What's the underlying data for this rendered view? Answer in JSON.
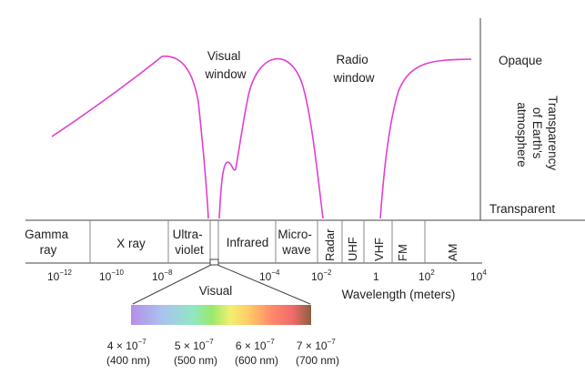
{
  "windows": {
    "visual": [
      "Visual",
      "window"
    ],
    "radio": [
      "Radio",
      "window"
    ]
  },
  "right_axis": {
    "top": "Opaque",
    "bottom": "Transparent",
    "label": [
      "Transparency",
      "of Earth's",
      "atmosphere"
    ]
  },
  "bands": {
    "gamma": [
      "Gamma",
      "ray"
    ],
    "xray": "X ray",
    "uv": [
      "Ultra-",
      "violet"
    ],
    "infrared": "Infrared",
    "microwave": [
      "Micro-",
      "wave"
    ],
    "radar": "Radar",
    "uhf": "UHF",
    "vhf": "VHF",
    "fm": "FM",
    "am": "AM"
  },
  "wavelength_axis": {
    "title": "Wavelength (meters)",
    "ticks": [
      {
        "base": "10",
        "exp": "−12"
      },
      {
        "base": "10",
        "exp": "−10"
      },
      {
        "base": "10",
        "exp": "−8"
      },
      {
        "base": "10",
        "exp": "−4"
      },
      {
        "base": "10",
        "exp": "−2"
      },
      {
        "base": "1",
        "exp": ""
      },
      {
        "base": "10",
        "exp": "2"
      },
      {
        "base": "10",
        "exp": "4"
      }
    ]
  },
  "visual_spectrum": {
    "title": "Visual",
    "ticks": [
      {
        "coef": "4 × 10",
        "exp": "−7",
        "nm": "(400 nm)"
      },
      {
        "coef": "5 × 10",
        "exp": "−7",
        "nm": "(500 nm)"
      },
      {
        "coef": "6 × 10",
        "exp": "−7",
        "nm": "(600 nm)"
      },
      {
        "coef": "7 × 10",
        "exp": "−7",
        "nm": "(700 nm)"
      }
    ],
    "colors": [
      "#b58fe8",
      "#a9c4f0",
      "#8fe8c0",
      "#9be86a",
      "#f0f070",
      "#ffcc66",
      "#ff8a6a",
      "#f06a6a",
      "#8a6040"
    ]
  },
  "colors": {
    "curve": "#e040d0",
    "line": "#444444",
    "text": "#222222"
  }
}
